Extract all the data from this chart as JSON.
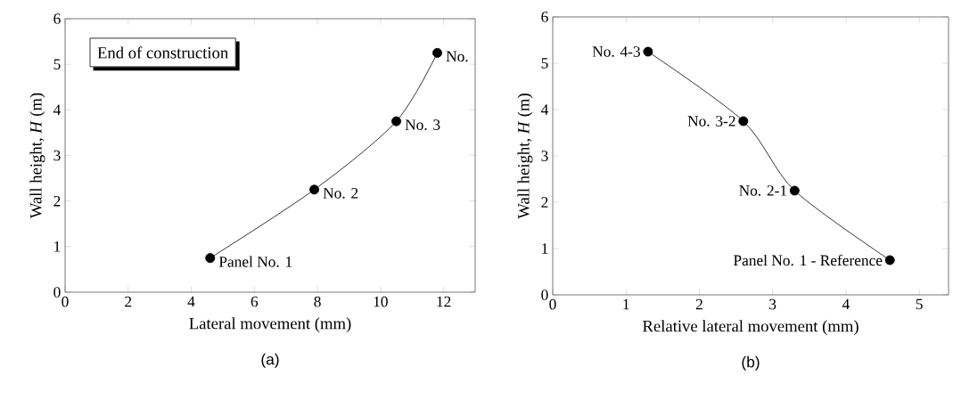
{
  "chart_data": [
    {
      "type": "line",
      "title": "(a)",
      "xlabel": "Lateral movement (mm)",
      "ylabel": "Wall height, *H* (m)",
      "x": [
        4.6,
        7.9,
        10.5,
        11.8
      ],
      "series": [
        {
          "color": "#000000",
          "values": [
            0.75,
            2.25,
            3.75,
            5.25
          ]
        }
      ],
      "xlim": [
        0,
        13
      ],
      "ylim": [
        0,
        6
      ],
      "xticks": [
        0,
        2,
        4,
        6,
        8,
        10,
        12
      ],
      "yticks": [
        0,
        1,
        2,
        3,
        4,
        5,
        6
      ],
      "marker": "circle",
      "annotations": [
        "End of construction",
        {
          "text": "Panel No. 1",
          "x": 4.6,
          "y": 0.75
        },
        {
          "text": "No. 2",
          "x": 7.9,
          "y": 2.25
        },
        {
          "text": "No. 3",
          "x": 10.5,
          "y": 3.75
        },
        {
          "text": "No.",
          "x": 11.8,
          "y": 5.25
        }
      ]
    },
    {
      "type": "line",
      "title": "(b)",
      "xlabel": "Relative lateral movement (mm)",
      "ylabel": "Wall height, *H* (m)",
      "x": [
        4.6,
        3.3,
        2.6,
        1.3
      ],
      "series": [
        {
          "color": "#000000",
          "values": [
            0.75,
            2.25,
            3.75,
            5.25
          ]
        }
      ],
      "xlim": [
        0,
        5.4
      ],
      "ylim": [
        0,
        6
      ],
      "xticks": [
        0,
        1,
        2,
        3,
        4,
        5
      ],
      "yticks": [
        0,
        1,
        2,
        3,
        4,
        5,
        6
      ],
      "marker": "circle",
      "annotations": [
        {
          "text": "Panel No. 1 - Reference",
          "x": 4.6,
          "y": 0.75
        },
        {
          "text": "No. 2-1",
          "x": 3.3,
          "y": 2.25
        },
        {
          "text": "No. 3-2",
          "x": 2.6,
          "y": 3.75
        },
        {
          "text": "No. 4-3",
          "x": 1.3,
          "y": 5.25
        }
      ]
    }
  ]
}
